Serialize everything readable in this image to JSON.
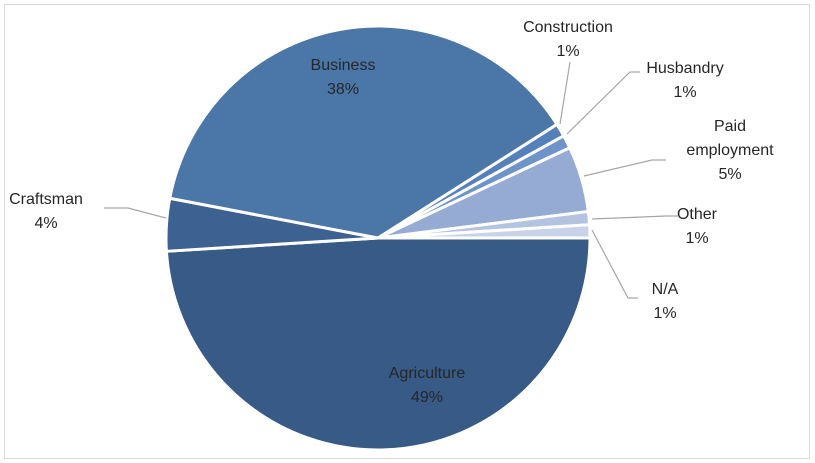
{
  "chart_data": {
    "type": "pie",
    "title": "",
    "slices": [
      {
        "label": "Agriculture",
        "lines": [
          "Agriculture"
        ],
        "value": 49,
        "display": "49%",
        "color": "#375a86"
      },
      {
        "label": "Craftsman",
        "lines": [
          "Craftsman"
        ],
        "value": 4,
        "display": "4%",
        "color": "#3d6191"
      },
      {
        "label": "Business",
        "lines": [
          "Business"
        ],
        "value": 38,
        "display": "38%",
        "color": "#4a76a8"
      },
      {
        "label": "Construction",
        "lines": [
          "Construction"
        ],
        "value": 1,
        "display": "1%",
        "color": "#5580bb"
      },
      {
        "label": "Husbandry",
        "lines": [
          "Husbandry"
        ],
        "value": 1,
        "display": "1%",
        "color": "#6d93c8"
      },
      {
        "label": "Paid employment",
        "lines": [
          "Paid",
          "employment"
        ],
        "value": 5,
        "display": "5%",
        "color": "#95abd3"
      },
      {
        "label": "Other",
        "lines": [
          "Other"
        ],
        "value": 1,
        "display": "1%",
        "color": "#b4c3e0"
      },
      {
        "label": "N/A",
        "lines": [
          "N/A"
        ],
        "value": 1,
        "display": "1%",
        "color": "#c8d3e8"
      }
    ],
    "legend": "none",
    "labels": "outside with leader lines"
  }
}
